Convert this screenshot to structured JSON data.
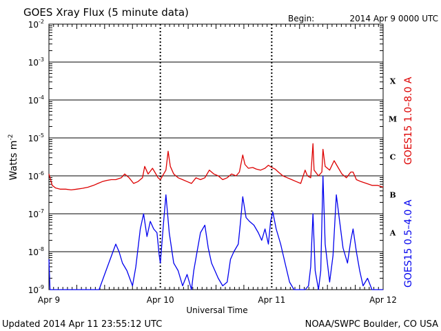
{
  "header": {
    "title": "GOES Xray Flux (5 minute data)",
    "begin_label": "Begin:",
    "begin_value": "2014 Apr 9 0000 UTC"
  },
  "footer": {
    "updated": "Updated 2014 Apr 11 23:55:12 UTC",
    "credit": "NOAA/SWPC Boulder, CO USA"
  },
  "chart_data": {
    "type": "line",
    "title": "GOES Xray Flux (5 minute data)",
    "xlabel": "Universal Time",
    "ylabel_base": "Watts m",
    "ylabel_exp": "-2",
    "x_unit": "days since Apr 9 00:00 UTC",
    "xlim": [
      0,
      3
    ],
    "x_ticks": [
      {
        "x": 0,
        "label": "Apr 9"
      },
      {
        "x": 1,
        "label": "Apr 10"
      },
      {
        "x": 2,
        "label": "Apr 11"
      },
      {
        "x": 3,
        "label": "Apr 12"
      }
    ],
    "y_scale": "log",
    "ylim_exponent": [
      -9,
      -2
    ],
    "y_ticks": [
      {
        "exp": -2,
        "base": "10",
        "sup": "-2"
      },
      {
        "exp": -3,
        "base": "10",
        "sup": "-3"
      },
      {
        "exp": -4,
        "base": "10",
        "sup": "-4"
      },
      {
        "exp": -5,
        "base": "10",
        "sup": "-5"
      },
      {
        "exp": -6,
        "base": "10",
        "sup": "-6"
      },
      {
        "exp": -7,
        "base": "10",
        "sup": "-7"
      },
      {
        "exp": -8,
        "base": "10",
        "sup": "-8"
      },
      {
        "exp": -9,
        "base": "10",
        "sup": "-9"
      }
    ],
    "flare_classes": [
      {
        "label": "X",
        "exp": -4
      },
      {
        "label": "M",
        "exp": -5
      },
      {
        "label": "C",
        "exp": -6
      },
      {
        "label": "B",
        "exp": -7
      },
      {
        "label": "A",
        "exp": -8
      }
    ],
    "grid": true,
    "series": [
      {
        "name": "GOES15 1.0–8.0 A",
        "color": "#dd0000",
        "points": [
          [
            0.0,
            -5.95
          ],
          [
            0.03,
            -6.25
          ],
          [
            0.06,
            -6.32
          ],
          [
            0.1,
            -6.35
          ],
          [
            0.15,
            -6.35
          ],
          [
            0.2,
            -6.37
          ],
          [
            0.25,
            -6.35
          ],
          [
            0.3,
            -6.33
          ],
          [
            0.35,
            -6.3
          ],
          [
            0.4,
            -6.25
          ],
          [
            0.44,
            -6.2
          ],
          [
            0.48,
            -6.15
          ],
          [
            0.52,
            -6.12
          ],
          [
            0.56,
            -6.1
          ],
          [
            0.6,
            -6.1
          ],
          [
            0.65,
            -6.05
          ],
          [
            0.68,
            -5.95
          ],
          [
            0.72,
            -6.05
          ],
          [
            0.76,
            -6.2
          ],
          [
            0.8,
            -6.15
          ],
          [
            0.84,
            -6.05
          ],
          [
            0.86,
            -5.75
          ],
          [
            0.89,
            -5.95
          ],
          [
            0.91,
            -5.88
          ],
          [
            0.93,
            -5.8
          ],
          [
            0.95,
            -5.9
          ],
          [
            0.98,
            -6.05
          ],
          [
            1.0,
            -6.1
          ],
          [
            1.02,
            -6.0
          ],
          [
            1.05,
            -5.85
          ],
          [
            1.07,
            -5.35
          ],
          [
            1.09,
            -5.75
          ],
          [
            1.12,
            -5.95
          ],
          [
            1.16,
            -6.05
          ],
          [
            1.2,
            -6.1
          ],
          [
            1.24,
            -6.15
          ],
          [
            1.28,
            -6.2
          ],
          [
            1.32,
            -6.05
          ],
          [
            1.36,
            -6.1
          ],
          [
            1.4,
            -6.05
          ],
          [
            1.44,
            -5.85
          ],
          [
            1.48,
            -5.95
          ],
          [
            1.52,
            -6.0
          ],
          [
            1.56,
            -6.1
          ],
          [
            1.6,
            -6.05
          ],
          [
            1.64,
            -5.95
          ],
          [
            1.68,
            -6.0
          ],
          [
            1.71,
            -5.9
          ],
          [
            1.74,
            -5.45
          ],
          [
            1.76,
            -5.7
          ],
          [
            1.79,
            -5.8
          ],
          [
            1.83,
            -5.78
          ],
          [
            1.86,
            -5.82
          ],
          [
            1.9,
            -5.85
          ],
          [
            1.94,
            -5.8
          ],
          [
            1.97,
            -5.72
          ],
          [
            2.0,
            -5.78
          ],
          [
            2.03,
            -5.82
          ],
          [
            2.06,
            -5.9
          ],
          [
            2.1,
            -6.0
          ],
          [
            2.14,
            -6.05
          ],
          [
            2.18,
            -6.1
          ],
          [
            2.22,
            -6.15
          ],
          [
            2.26,
            -6.2
          ],
          [
            2.3,
            -5.85
          ],
          [
            2.32,
            -6.0
          ],
          [
            2.35,
            -6.05
          ],
          [
            2.37,
            -5.15
          ],
          [
            2.38,
            -5.85
          ],
          [
            2.42,
            -6.0
          ],
          [
            2.45,
            -5.9
          ],
          [
            2.46,
            -5.3
          ],
          [
            2.48,
            -5.75
          ],
          [
            2.52,
            -5.85
          ],
          [
            2.56,
            -5.6
          ],
          [
            2.6,
            -5.8
          ],
          [
            2.63,
            -5.95
          ],
          [
            2.67,
            -6.05
          ],
          [
            2.71,
            -5.9
          ],
          [
            2.73,
            -5.9
          ],
          [
            2.76,
            -6.1
          ],
          [
            2.8,
            -6.15
          ],
          [
            2.85,
            -6.2
          ],
          [
            2.9,
            -6.25
          ],
          [
            2.95,
            -6.25
          ],
          [
            3.0,
            -6.3
          ]
        ]
      },
      {
        "name": "GOES15 0.5–4.0 A",
        "color": "#0000ee",
        "points": [
          [
            0.0,
            -8.2
          ],
          [
            0.01,
            -9.05
          ],
          [
            0.05,
            -9.1
          ],
          [
            0.1,
            -9.1
          ],
          [
            0.2,
            -9.1
          ],
          [
            0.3,
            -9.1
          ],
          [
            0.4,
            -9.1
          ],
          [
            0.45,
            -9.0
          ],
          [
            0.5,
            -8.6
          ],
          [
            0.55,
            -8.2
          ],
          [
            0.6,
            -7.8
          ],
          [
            0.63,
            -8.0
          ],
          [
            0.66,
            -8.3
          ],
          [
            0.7,
            -8.5
          ],
          [
            0.75,
            -8.9
          ],
          [
            0.78,
            -8.4
          ],
          [
            0.82,
            -7.4
          ],
          [
            0.85,
            -7.0
          ],
          [
            0.88,
            -7.6
          ],
          [
            0.91,
            -7.2
          ],
          [
            0.94,
            -7.4
          ],
          [
            0.97,
            -7.5
          ],
          [
            0.99,
            -8.1
          ],
          [
            1.0,
            -8.3
          ],
          [
            1.03,
            -7.2
          ],
          [
            1.05,
            -6.5
          ],
          [
            1.08,
            -7.5
          ],
          [
            1.12,
            -8.3
          ],
          [
            1.16,
            -8.5
          ],
          [
            1.2,
            -8.9
          ],
          [
            1.24,
            -8.6
          ],
          [
            1.28,
            -9.0
          ],
          [
            1.3,
            -8.5
          ],
          [
            1.33,
            -8.0
          ],
          [
            1.36,
            -7.5
          ],
          [
            1.4,
            -7.3
          ],
          [
            1.43,
            -7.9
          ],
          [
            1.46,
            -8.3
          ],
          [
            1.49,
            -8.5
          ],
          [
            1.52,
            -8.7
          ],
          [
            1.56,
            -8.9
          ],
          [
            1.6,
            -8.8
          ],
          [
            1.63,
            -8.2
          ],
          [
            1.66,
            -8.0
          ],
          [
            1.7,
            -7.8
          ],
          [
            1.72,
            -7.2
          ],
          [
            1.74,
            -6.55
          ],
          [
            1.77,
            -7.1
          ],
          [
            1.8,
            -7.2
          ],
          [
            1.84,
            -7.3
          ],
          [
            1.88,
            -7.5
          ],
          [
            1.91,
            -7.7
          ],
          [
            1.94,
            -7.4
          ],
          [
            1.97,
            -7.8
          ],
          [
            1.99,
            -7.2
          ],
          [
            2.01,
            -6.95
          ],
          [
            2.04,
            -7.4
          ],
          [
            2.08,
            -7.8
          ],
          [
            2.12,
            -8.3
          ],
          [
            2.16,
            -8.8
          ],
          [
            2.2,
            -9.0
          ],
          [
            2.25,
            -9.0
          ],
          [
            2.3,
            -9.0
          ],
          [
            2.33,
            -8.9
          ],
          [
            2.35,
            -8.4
          ],
          [
            2.37,
            -7.0
          ],
          [
            2.39,
            -8.5
          ],
          [
            2.42,
            -9.0
          ],
          [
            2.44,
            -8.5
          ],
          [
            2.46,
            -6.0
          ],
          [
            2.48,
            -7.8
          ],
          [
            2.52,
            -8.8
          ],
          [
            2.55,
            -8.1
          ],
          [
            2.58,
            -6.5
          ],
          [
            2.61,
            -7.2
          ],
          [
            2.64,
            -7.9
          ],
          [
            2.68,
            -8.3
          ],
          [
            2.71,
            -7.7
          ],
          [
            2.73,
            -7.4
          ],
          [
            2.76,
            -8.0
          ],
          [
            2.79,
            -8.5
          ],
          [
            2.82,
            -8.9
          ],
          [
            2.86,
            -8.7
          ],
          [
            2.9,
            -9.0
          ],
          [
            2.95,
            -9.05
          ],
          [
            3.0,
            -9.05
          ]
        ]
      }
    ]
  }
}
